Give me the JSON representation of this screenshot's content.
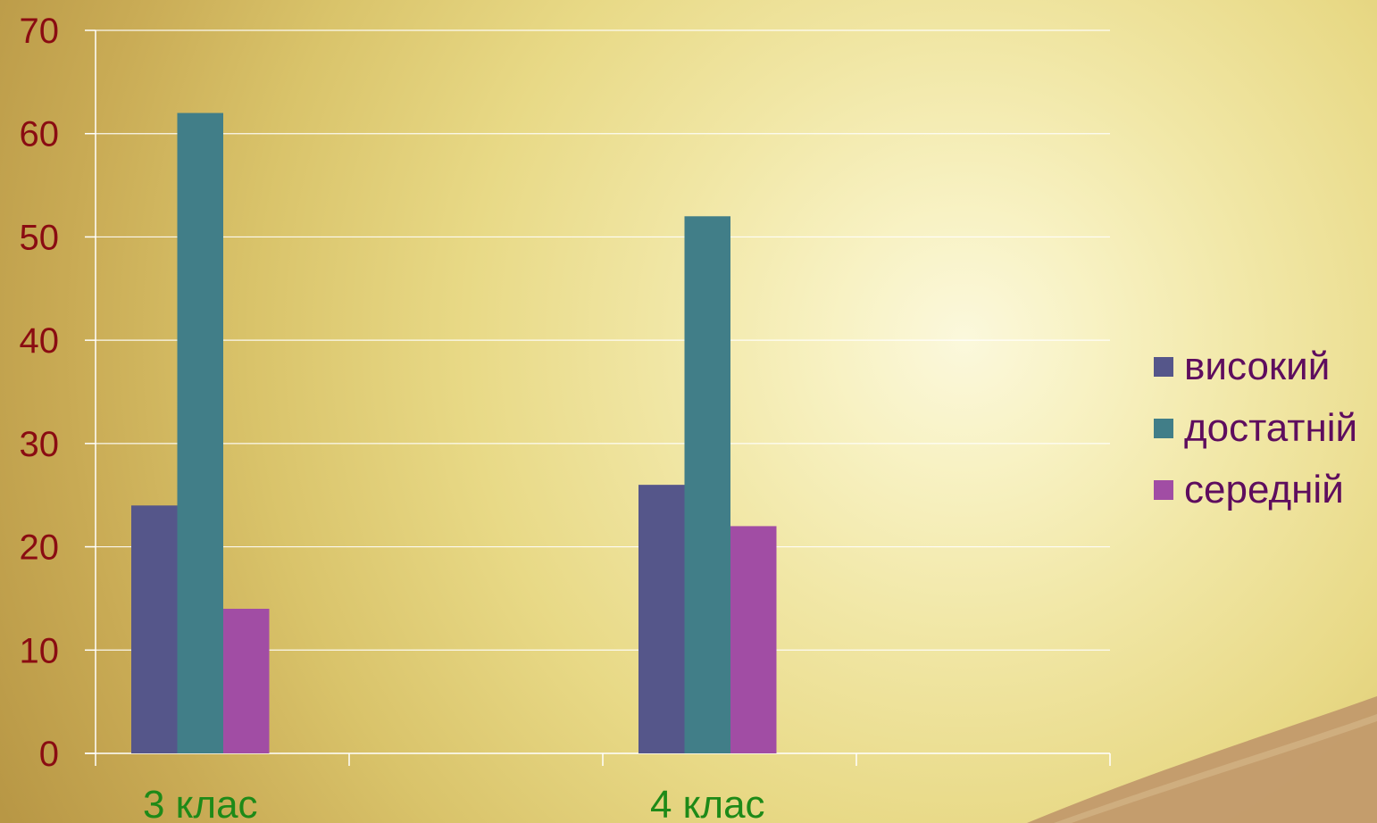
{
  "chart_data": {
    "type": "bar",
    "categories": [
      "3 клас",
      "4 клас"
    ],
    "series": [
      {
        "name": "високий",
        "values": [
          24,
          26
        ],
        "color": "#55568a"
      },
      {
        "name": "достатній",
        "values": [
          62,
          52
        ],
        "color": "#417e88"
      },
      {
        "name": "середній",
        "values": [
          14,
          22
        ],
        "color": "#a14da4"
      }
    ],
    "title": "",
    "xlabel": "",
    "ylabel": "",
    "ylim": [
      0,
      70
    ],
    "yticks": [
      "0",
      "10",
      "20",
      "30",
      "40",
      "50",
      "60",
      "70"
    ],
    "grid": true,
    "legend_position": "right",
    "colors": {
      "y_tick_labels": "#8a0c12",
      "x_tick_labels": "#1e8a18",
      "legend_text": "#5e0d5e",
      "gridlines": "#ffffff"
    }
  }
}
